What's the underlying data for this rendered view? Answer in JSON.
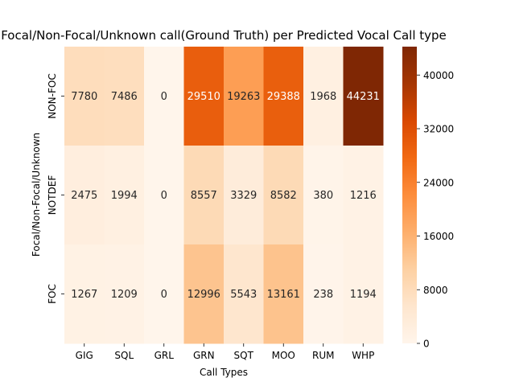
{
  "chart_data": {
    "type": "heatmap",
    "title": "Focal/Non-Focal/Unknown call(Ground Truth) per Predicted Vocal Call type",
    "xlabel": "Call Types",
    "ylabel": "Focal/Non-Focal/Unknown",
    "x_categories": [
      "GIG",
      "SQL",
      "GRL",
      "GRN",
      "SQT",
      "MOO",
      "RUM",
      "WHP"
    ],
    "y_categories": [
      "NON-FOC",
      "NOTDEF",
      "FOC"
    ],
    "values": [
      [
        7780,
        7486,
        0,
        29510,
        19263,
        29388,
        1968,
        44231
      ],
      [
        2475,
        1994,
        0,
        8557,
        3329,
        8582,
        380,
        1216
      ],
      [
        1267,
        1209,
        0,
        12996,
        5543,
        13161,
        238,
        1194
      ]
    ],
    "color_range": [
      0,
      44231
    ],
    "colormap": "Oranges",
    "colorbar_ticks": [
      0,
      8000,
      16000,
      24000,
      32000,
      40000
    ],
    "grid": false,
    "legend": "colorbar-right"
  }
}
